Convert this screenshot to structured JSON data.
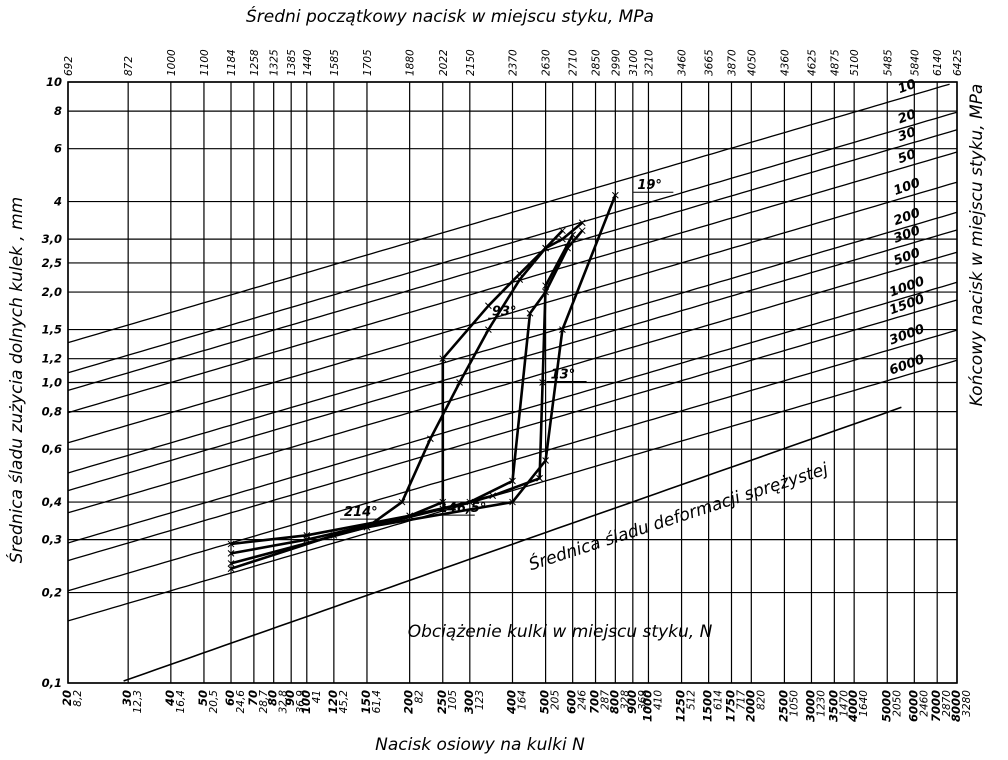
{
  "chart_data": {
    "type": "line",
    "title": "",
    "top_axis_label": "Średni początkowy nacisk w miejscu styku, MPa",
    "xlabel": "Nacisk osiowy na kulki N",
    "ylabel_left": "Średnica śladu zużycia dolnych kulek , mm",
    "ylabel_right": "Końcowy nacisk w miejscu styku, MPa",
    "inner_xlabel": "Obciążenie kulki w miejscu styku, N",
    "elastic_curve_label": "Średnica śladu deformacji sprężystej",
    "log_scale": true,
    "xlim": [
      20,
      8000
    ],
    "ylim": [
      0.1,
      10
    ],
    "yticks": [
      0.1,
      0.2,
      0.3,
      0.4,
      0.6,
      0.8,
      1.0,
      1.2,
      1.5,
      2.0,
      2.5,
      3.0,
      4,
      6,
      8,
      10
    ],
    "ytick_labels": [
      "0,1",
      "0,2",
      "0,3",
      "0,4",
      "0,6",
      "0,8",
      "1,0",
      "1,2",
      "1,5",
      "2,0",
      "2,5",
      "3,0",
      "4",
      "6",
      "8",
      "10"
    ],
    "axial_load_ticks": [
      20,
      30,
      40,
      50,
      60,
      70,
      80,
      90,
      100,
      120,
      150,
      200,
      250,
      300,
      400,
      500,
      600,
      700,
      800,
      900,
      1000,
      1250,
      1500,
      1750,
      2000,
      2500,
      3000,
      3500,
      4000,
      5000,
      6000,
      7000,
      8000
    ],
    "ball_load_ticks": [
      "8,2",
      "12,3",
      "16,4",
      "20,5",
      "24,6",
      "28,7",
      "32,8",
      "36,9",
      "41",
      "45,2",
      "61,4",
      "82",
      "105",
      "123",
      "164",
      "205",
      "246",
      "287",
      "328",
      "369",
      "410",
      "512",
      "614",
      "717",
      "820",
      "1050",
      "1230",
      "1470",
      "1640",
      "2050",
      "2460",
      "2870",
      "3280"
    ],
    "top_pressure_ticks": [
      "692",
      "872",
      "1000",
      "1100",
      "1184",
      "1258",
      "1325",
      "1385",
      "1440",
      "1585",
      "1705",
      "1880",
      "2022",
      "2150",
      "2370",
      "2630",
      "2710",
      "2850",
      "2990",
      "3100",
      "3210",
      "3460",
      "3665",
      "3870",
      "4050",
      "4360",
      "4625",
      "4875",
      "5100",
      "5485",
      "5840",
      "6140",
      "6425"
    ],
    "pressure_isolines": [
      10,
      20,
      30,
      50,
      100,
      200,
      300,
      500,
      1000,
      1500,
      3000,
      6000
    ],
    "pressure_isoline_labels": [
      "10",
      "20",
      "30",
      "50",
      "100",
      "200",
      "300",
      "500",
      "1000",
      "1500",
      "3000",
      "6000"
    ],
    "series": [
      {
        "name": "19°",
        "x": [
          60,
          150,
          400,
          500,
          560,
          800
        ],
        "y": [
          0.25,
          0.33,
          0.4,
          0.55,
          1.5,
          4.2
        ]
      },
      {
        "name": "214°",
        "x": [
          150,
          190,
          230,
          280,
          340,
          420,
          500,
          560
        ],
        "y": [
          0.33,
          0.4,
          0.65,
          1.0,
          1.5,
          2.2,
          2.8,
          3.2
        ]
      },
      {
        "name": "146,5°",
        "x": [
          60,
          100,
          200,
          250,
          250,
          340,
          420,
          500,
          560,
          640
        ],
        "y": [
          0.27,
          0.3,
          0.36,
          0.4,
          1.2,
          1.8,
          2.3,
          2.8,
          3.0,
          3.4
        ]
      },
      {
        "name": "93°",
        "x": [
          60,
          100,
          200,
          300,
          400,
          450,
          500,
          580,
          640
        ],
        "y": [
          0.29,
          0.31,
          0.36,
          0.4,
          0.47,
          1.7,
          2.0,
          2.8,
          3.2
        ]
      },
      {
        "name": "13°",
        "x": [
          60,
          120,
          250,
          350,
          480,
          490,
          500,
          600
        ],
        "y": [
          0.24,
          0.31,
          0.38,
          0.42,
          0.48,
          1.0,
          2.1,
          3.1
        ]
      }
    ]
  }
}
